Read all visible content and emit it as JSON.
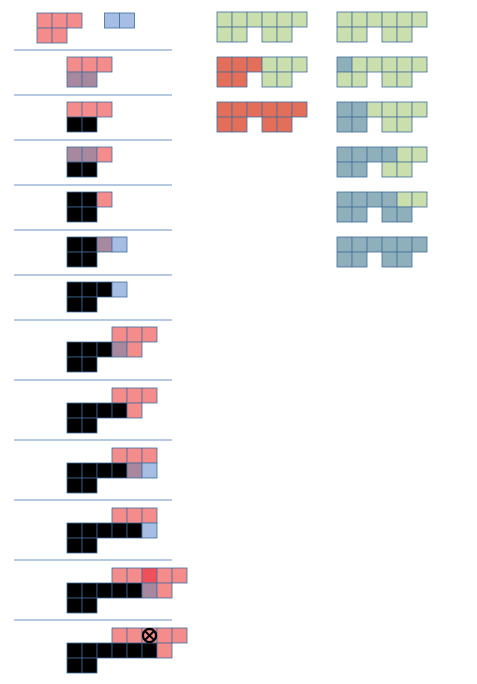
{
  "palette": {
    "pink": "#F58C8C",
    "blue": "#A6BEE3",
    "mauve": "#A8889E",
    "black": "#000000",
    "red": "#F0505A",
    "green": "#CADEAE",
    "orange": "#E36F5A",
    "teal": "#8FB0BA",
    "cell_stroke": "#3F6C9C",
    "divider": "#6E93C7",
    "marker": "#000000"
  },
  "left_column": {
    "cell_size": 15,
    "steps": [
      {
        "name": "step-1",
        "cells": [
          [
            0,
            0,
            "pink"
          ],
          [
            1,
            0,
            "pink"
          ],
          [
            2,
            0,
            "pink"
          ],
          [
            0,
            1,
            "pink"
          ],
          [
            1,
            1,
            "pink"
          ],
          [
            4.5,
            0,
            "blue"
          ],
          [
            5.5,
            0,
            "blue"
          ]
        ]
      },
      {
        "name": "step-2",
        "cells": [
          [
            2,
            0,
            "pink"
          ],
          [
            3,
            0,
            "pink"
          ],
          [
            4,
            0,
            "pink"
          ],
          [
            2,
            1,
            "mauve"
          ],
          [
            3,
            1,
            "mauve"
          ]
        ]
      },
      {
        "name": "step-3",
        "cells": [
          [
            2,
            0,
            "pink"
          ],
          [
            3,
            0,
            "pink"
          ],
          [
            4,
            0,
            "pink"
          ],
          [
            2,
            1,
            "black"
          ],
          [
            3,
            1,
            "black"
          ]
        ]
      },
      {
        "name": "step-4",
        "cells": [
          [
            2,
            0,
            "mauve"
          ],
          [
            3,
            0,
            "mauve"
          ],
          [
            4,
            0,
            "pink"
          ],
          [
            2,
            1,
            "black"
          ],
          [
            3,
            1,
            "black"
          ]
        ]
      },
      {
        "name": "step-5",
        "cells": [
          [
            2,
            0,
            "black"
          ],
          [
            3,
            0,
            "black"
          ],
          [
            4,
            0,
            "pink"
          ],
          [
            2,
            1,
            "black"
          ],
          [
            3,
            1,
            "black"
          ]
        ]
      },
      {
        "name": "step-6",
        "cells": [
          [
            2,
            0,
            "black"
          ],
          [
            3,
            0,
            "black"
          ],
          [
            4,
            0,
            "mauve"
          ],
          [
            5,
            0,
            "blue"
          ],
          [
            2,
            1,
            "black"
          ],
          [
            3,
            1,
            "black"
          ]
        ]
      },
      {
        "name": "step-7",
        "cells": [
          [
            2,
            0,
            "black"
          ],
          [
            3,
            0,
            "black"
          ],
          [
            4,
            0,
            "black"
          ],
          [
            5,
            0,
            "blue"
          ],
          [
            2,
            1,
            "black"
          ],
          [
            3,
            1,
            "black"
          ]
        ]
      },
      {
        "name": "step-8",
        "cells": [
          [
            5,
            0,
            "pink"
          ],
          [
            6,
            0,
            "pink"
          ],
          [
            7,
            0,
            "pink"
          ],
          [
            2,
            1,
            "black"
          ],
          [
            3,
            1,
            "black"
          ],
          [
            4,
            1,
            "black"
          ],
          [
            5,
            1,
            "mauve"
          ],
          [
            6,
            1,
            "pink"
          ],
          [
            2,
            2,
            "black"
          ],
          [
            3,
            2,
            "black"
          ]
        ]
      },
      {
        "name": "step-9",
        "cells": [
          [
            5,
            0,
            "pink"
          ],
          [
            6,
            0,
            "pink"
          ],
          [
            7,
            0,
            "pink"
          ],
          [
            2,
            1,
            "black"
          ],
          [
            3,
            1,
            "black"
          ],
          [
            4,
            1,
            "black"
          ],
          [
            5,
            1,
            "black"
          ],
          [
            6,
            1,
            "pink"
          ],
          [
            2,
            2,
            "black"
          ],
          [
            3,
            2,
            "black"
          ]
        ]
      },
      {
        "name": "step-10",
        "cells": [
          [
            5,
            0,
            "pink"
          ],
          [
            6,
            0,
            "pink"
          ],
          [
            7,
            0,
            "pink"
          ],
          [
            2,
            1,
            "black"
          ],
          [
            3,
            1,
            "black"
          ],
          [
            4,
            1,
            "black"
          ],
          [
            5,
            1,
            "black"
          ],
          [
            6,
            1,
            "mauve"
          ],
          [
            7,
            1,
            "blue"
          ],
          [
            2,
            2,
            "black"
          ],
          [
            3,
            2,
            "black"
          ]
        ]
      },
      {
        "name": "step-11",
        "cells": [
          [
            5,
            0,
            "pink"
          ],
          [
            6,
            0,
            "pink"
          ],
          [
            7,
            0,
            "pink"
          ],
          [
            2,
            1,
            "black"
          ],
          [
            3,
            1,
            "black"
          ],
          [
            4,
            1,
            "black"
          ],
          [
            5,
            1,
            "black"
          ],
          [
            6,
            1,
            "black"
          ],
          [
            7,
            1,
            "blue"
          ],
          [
            2,
            2,
            "black"
          ],
          [
            3,
            2,
            "black"
          ]
        ]
      },
      {
        "name": "step-12",
        "cells": [
          [
            5,
            0,
            "pink"
          ],
          [
            6,
            0,
            "pink"
          ],
          [
            7,
            0,
            "red"
          ],
          [
            8,
            0,
            "pink"
          ],
          [
            9,
            0,
            "pink"
          ],
          [
            2,
            1,
            "black"
          ],
          [
            3,
            1,
            "black"
          ],
          [
            4,
            1,
            "black"
          ],
          [
            5,
            1,
            "black"
          ],
          [
            6,
            1,
            "black"
          ],
          [
            7,
            1,
            "mauve"
          ],
          [
            8,
            1,
            "pink"
          ],
          [
            2,
            2,
            "black"
          ],
          [
            3,
            2,
            "black"
          ]
        ]
      },
      {
        "name": "step-13",
        "marker": [
          7,
          0
        ],
        "cells": [
          [
            5,
            0,
            "pink"
          ],
          [
            6,
            0,
            "pink"
          ],
          [
            7,
            0,
            "pink"
          ],
          [
            8,
            0,
            "pink"
          ],
          [
            9,
            0,
            "pink"
          ],
          [
            2,
            1,
            "black"
          ],
          [
            3,
            1,
            "black"
          ],
          [
            4,
            1,
            "black"
          ],
          [
            5,
            1,
            "black"
          ],
          [
            6,
            1,
            "black"
          ],
          [
            7,
            1,
            "black"
          ],
          [
            8,
            1,
            "pink"
          ],
          [
            2,
            2,
            "black"
          ],
          [
            3,
            2,
            "black"
          ]
        ]
      }
    ]
  },
  "right_columns": {
    "cell_size": 15,
    "shapes": [
      {
        "name": "shape-a1",
        "cells": [
          [
            0,
            0,
            "green"
          ],
          [
            1,
            0,
            "green"
          ],
          [
            2,
            0,
            "green"
          ],
          [
            3,
            0,
            "green"
          ],
          [
            4,
            0,
            "green"
          ],
          [
            5,
            0,
            "green"
          ],
          [
            0,
            1,
            "green"
          ],
          [
            1,
            1,
            "green"
          ],
          [
            3,
            1,
            "green"
          ],
          [
            4,
            1,
            "green"
          ]
        ]
      },
      {
        "name": "shape-a2",
        "cells": [
          [
            0,
            0,
            "orange"
          ],
          [
            1,
            0,
            "orange"
          ],
          [
            2,
            0,
            "orange"
          ],
          [
            3,
            0,
            "green"
          ],
          [
            4,
            0,
            "green"
          ],
          [
            5,
            0,
            "green"
          ],
          [
            0,
            1,
            "orange"
          ],
          [
            1,
            1,
            "orange"
          ],
          [
            3,
            1,
            "green"
          ],
          [
            4,
            1,
            "green"
          ]
        ]
      },
      {
        "name": "shape-a3",
        "cells": [
          [
            0,
            0,
            "orange"
          ],
          [
            1,
            0,
            "orange"
          ],
          [
            2,
            0,
            "orange"
          ],
          [
            3,
            0,
            "orange"
          ],
          [
            4,
            0,
            "orange"
          ],
          [
            5,
            0,
            "orange"
          ],
          [
            0,
            1,
            "orange"
          ],
          [
            1,
            1,
            "orange"
          ],
          [
            3,
            1,
            "orange"
          ],
          [
            4,
            1,
            "orange"
          ]
        ]
      },
      {
        "name": "shape-b1",
        "cells": [
          [
            0,
            0,
            "green"
          ],
          [
            1,
            0,
            "green"
          ],
          [
            2,
            0,
            "green"
          ],
          [
            3,
            0,
            "green"
          ],
          [
            4,
            0,
            "green"
          ],
          [
            5,
            0,
            "green"
          ],
          [
            0,
            1,
            "green"
          ],
          [
            1,
            1,
            "green"
          ],
          [
            3,
            1,
            "green"
          ],
          [
            4,
            1,
            "green"
          ]
        ]
      },
      {
        "name": "shape-b2",
        "cells": [
          [
            0,
            0,
            "teal"
          ],
          [
            1,
            0,
            "green"
          ],
          [
            2,
            0,
            "green"
          ],
          [
            3,
            0,
            "green"
          ],
          [
            4,
            0,
            "green"
          ],
          [
            5,
            0,
            "green"
          ],
          [
            0,
            1,
            "green"
          ],
          [
            1,
            1,
            "green"
          ],
          [
            3,
            1,
            "green"
          ],
          [
            4,
            1,
            "green"
          ]
        ]
      },
      {
        "name": "shape-b3",
        "cells": [
          [
            0,
            0,
            "teal"
          ],
          [
            1,
            0,
            "teal"
          ],
          [
            2,
            0,
            "green"
          ],
          [
            3,
            0,
            "green"
          ],
          [
            4,
            0,
            "green"
          ],
          [
            5,
            0,
            "green"
          ],
          [
            0,
            1,
            "teal"
          ],
          [
            1,
            1,
            "teal"
          ],
          [
            3,
            1,
            "green"
          ],
          [
            4,
            1,
            "green"
          ]
        ]
      },
      {
        "name": "shape-b4",
        "cells": [
          [
            0,
            0,
            "teal"
          ],
          [
            1,
            0,
            "teal"
          ],
          [
            2,
            0,
            "teal"
          ],
          [
            3,
            0,
            "teal"
          ],
          [
            4,
            0,
            "green"
          ],
          [
            5,
            0,
            "green"
          ],
          [
            0,
            1,
            "teal"
          ],
          [
            1,
            1,
            "teal"
          ],
          [
            3,
            1,
            "green"
          ],
          [
            4,
            1,
            "green"
          ]
        ]
      },
      {
        "name": "shape-b5",
        "cells": [
          [
            0,
            0,
            "teal"
          ],
          [
            1,
            0,
            "teal"
          ],
          [
            2,
            0,
            "teal"
          ],
          [
            3,
            0,
            "teal"
          ],
          [
            4,
            0,
            "green"
          ],
          [
            5,
            0,
            "green"
          ],
          [
            0,
            1,
            "teal"
          ],
          [
            1,
            1,
            "teal"
          ],
          [
            3,
            1,
            "teal"
          ],
          [
            4,
            1,
            "teal"
          ]
        ]
      },
      {
        "name": "shape-b6",
        "cells": [
          [
            0,
            0,
            "teal"
          ],
          [
            1,
            0,
            "teal"
          ],
          [
            2,
            0,
            "teal"
          ],
          [
            3,
            0,
            "teal"
          ],
          [
            4,
            0,
            "teal"
          ],
          [
            5,
            0,
            "teal"
          ],
          [
            0,
            1,
            "teal"
          ],
          [
            1,
            1,
            "teal"
          ],
          [
            3,
            1,
            "teal"
          ],
          [
            4,
            1,
            "teal"
          ]
        ]
      }
    ]
  }
}
